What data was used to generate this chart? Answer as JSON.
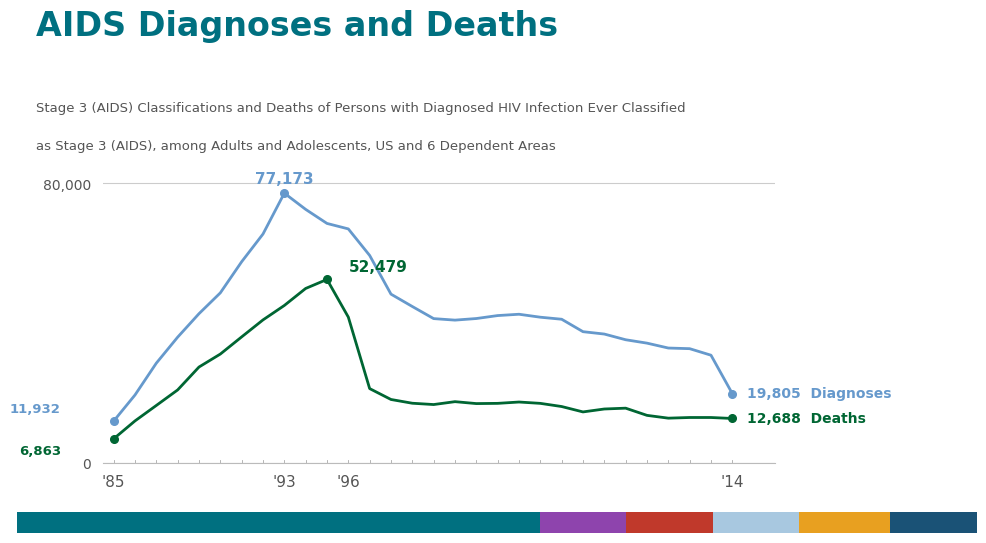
{
  "title": "AIDS Diagnoses and Deaths",
  "subtitle_line1": "Stage 3 (AIDS) Classifications and Deaths of Persons with Diagnosed HIV Infection Ever Classified",
  "subtitle_line2": "as Stage 3 (AIDS), among Adults and Adolescents, US and 6 Dependent Areas",
  "title_color": "#007080",
  "subtitle_color": "#555555",
  "diagnoses_years": [
    1985,
    1986,
    1987,
    1988,
    1989,
    1990,
    1991,
    1992,
    1993,
    1994,
    1995,
    1996,
    1997,
    1998,
    1999,
    2000,
    2001,
    2002,
    2003,
    2004,
    2005,
    2006,
    2007,
    2008,
    2009,
    2010,
    2011,
    2012,
    2013,
    2014
  ],
  "diagnoses_values": [
    11932,
    19404,
    28520,
    35957,
    42674,
    48634,
    57541,
    65472,
    77173,
    72530,
    68505,
    66940,
    59347,
    48269,
    44730,
    41267,
    40833,
    41289,
    42136,
    42514,
    41669,
    41086,
    37526,
    36847,
    35218,
    34247,
    32846,
    32664,
    30792,
    19805
  ],
  "deaths_years": [
    1985,
    1986,
    1987,
    1988,
    1989,
    1990,
    1991,
    1992,
    1993,
    1994,
    1995,
    1996,
    1997,
    1998,
    1999,
    2000,
    2001,
    2002,
    2003,
    2004,
    2005,
    2006,
    2007,
    2008,
    2009,
    2010,
    2011,
    2012,
    2013,
    2014
  ],
  "deaths_values": [
    6863,
    11987,
    16412,
    20858,
    27408,
    31120,
    36032,
    40894,
    45026,
    49895,
    52479,
    41699,
    21237,
    18121,
    17047,
    16672,
    17497,
    16948,
    17011,
    17394,
    17011,
    16105,
    14561,
    15398,
    15634,
    13576,
    12776,
    12964,
    12963,
    12688
  ],
  "diagnoses_color": "#6699cc",
  "deaths_color": "#006633",
  "ylim": [
    0,
    85000
  ],
  "yticks": [
    0,
    80000
  ],
  "xtick_positions": [
    1985,
    1993,
    1996,
    2014
  ],
  "xtick_labels": [
    "'85",
    "'93",
    "'96",
    "'14"
  ],
  "footer_colors": [
    "#007080",
    "#8e44ad",
    "#c0392b",
    "#a8c8e0",
    "#e8a020",
    "#1a5276"
  ],
  "footer_widths": [
    0.545,
    0.09,
    0.09,
    0.09,
    0.095,
    0.09
  ]
}
